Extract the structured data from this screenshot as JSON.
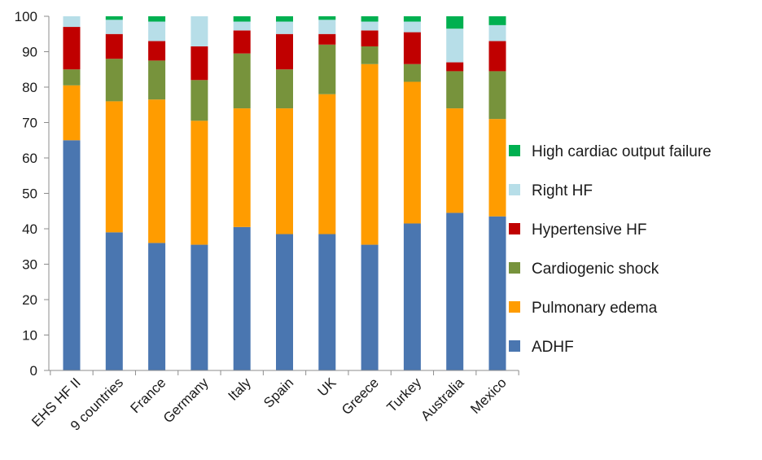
{
  "chart_data": {
    "type": "bar",
    "stacked": true,
    "title": "",
    "xlabel": "",
    "ylabel": "",
    "ylim": [
      0,
      100
    ],
    "yticks": [
      0,
      10,
      20,
      30,
      40,
      50,
      60,
      70,
      80,
      90,
      100
    ],
    "grid": false,
    "legend_position": "right",
    "categories": [
      "EHS HF II",
      "9 countries",
      "France",
      "Germany",
      "Italy",
      "Spain",
      "UK",
      "Greece",
      "Turkey",
      "Australia",
      "Mexico"
    ],
    "series": [
      {
        "name": "ADHF",
        "color": "#4a76b0",
        "values": [
          65,
          39,
          36,
          35.5,
          40.5,
          38.5,
          38.5,
          35.5,
          41.5,
          44.5,
          43.5
        ]
      },
      {
        "name": "Pulmonary edema",
        "color": "#ff9c00",
        "values": [
          15.5,
          37,
          40.5,
          35,
          33.5,
          35.5,
          39.5,
          51,
          40,
          29.5,
          27.5
        ]
      },
      {
        "name": "Cardiogenic shock",
        "color": "#77933c",
        "values": [
          4.5,
          12,
          11,
          11.5,
          15.5,
          11,
          14,
          5,
          5,
          10.5,
          13.5
        ]
      },
      {
        "name": "Hypertensive HF",
        "color": "#c00000",
        "values": [
          12,
          7,
          5.5,
          9.5,
          6.5,
          10,
          3,
          4.5,
          9,
          2.5,
          8.5
        ]
      },
      {
        "name": "Right HF",
        "color": "#b7dee8",
        "values": [
          3,
          4,
          5.5,
          8.5,
          2.5,
          3.5,
          4,
          2.5,
          3,
          9.5,
          4.5
        ]
      },
      {
        "name": "High cardiac output failure",
        "color": "#00b050",
        "values": [
          0,
          1,
          1.5,
          0,
          1.5,
          1.5,
          1,
          1.5,
          1.5,
          3.5,
          2.5
        ]
      }
    ],
    "legend_order": [
      "High cardiac output failure",
      "Right HF",
      "Hypertensive HF",
      "Cardiogenic shock",
      "Pulmonary edema",
      "ADHF"
    ]
  }
}
